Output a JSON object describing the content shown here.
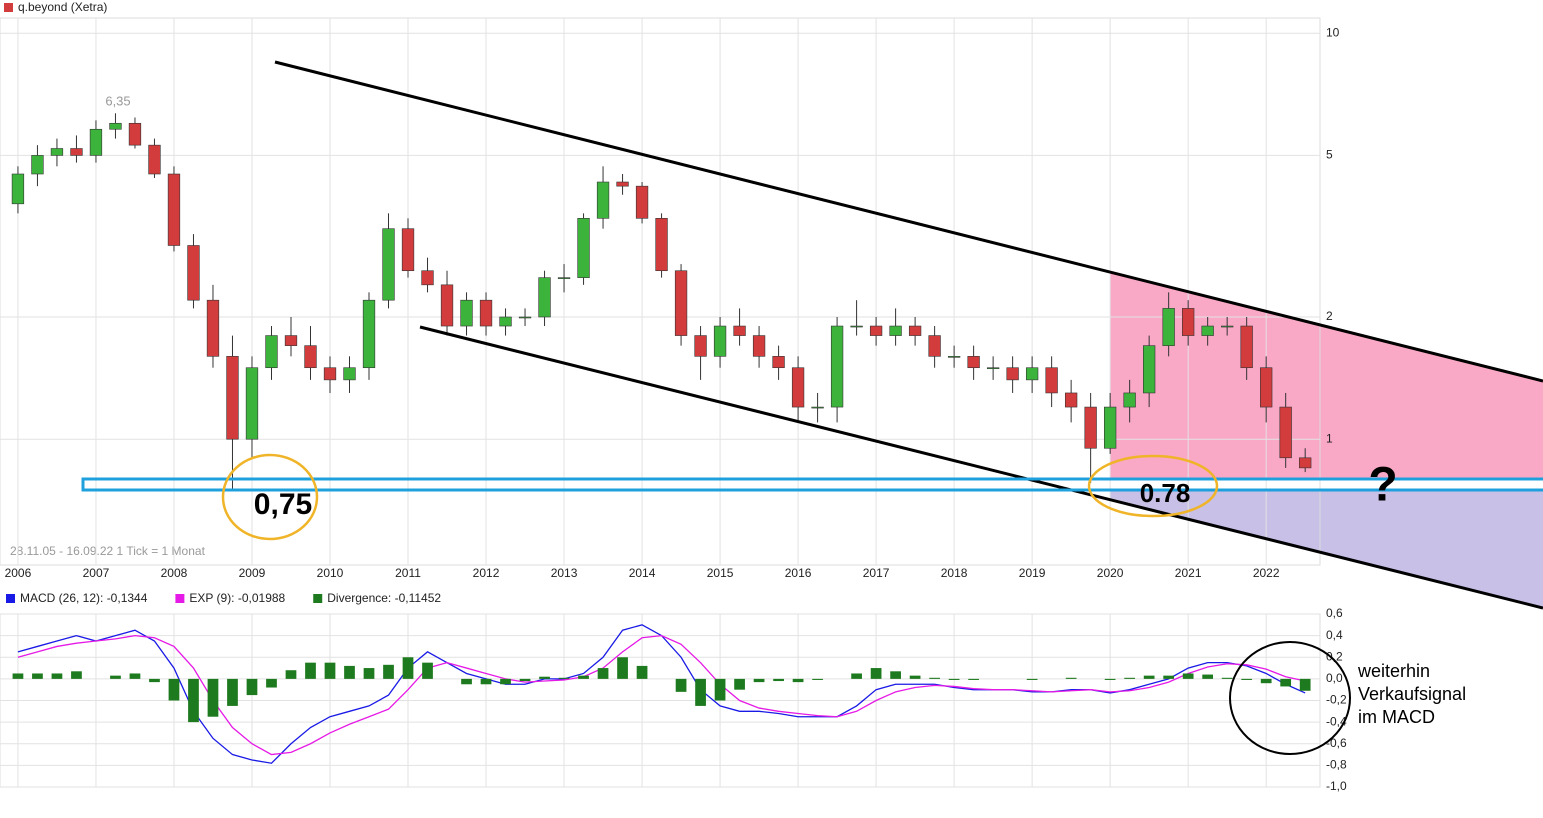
{
  "chart_data": [
    {
      "type": "candlestick",
      "title": "q.beyond (Xetra)",
      "subtitle": "28.11.05 - 16.09.22   1 Tick = 1 Monat",
      "x": [
        2006,
        2006.25,
        2006.5,
        2006.75,
        2007,
        2007.25,
        2007.5,
        2007.75,
        2008,
        2008.25,
        2008.5,
        2008.75,
        2009,
        2009.25,
        2009.5,
        2009.75,
        2010,
        2010.25,
        2010.5,
        2010.75,
        2011,
        2011.25,
        2011.5,
        2011.75,
        2012,
        2012.25,
        2012.5,
        2012.75,
        2013,
        2013.25,
        2013.5,
        2013.75,
        2014,
        2014.25,
        2014.5,
        2014.75,
        2015,
        2015.25,
        2015.5,
        2015.75,
        2016,
        2016.25,
        2016.5,
        2016.75,
        2017,
        2017.25,
        2017.5,
        2017.75,
        2018,
        2018.25,
        2018.5,
        2018.75,
        2019,
        2019.25,
        2019.5,
        2019.75,
        2020,
        2020.25,
        2020.5,
        2020.75,
        2021,
        2021.25,
        2021.5,
        2021.75,
        2022,
        2022.25,
        2022.5
      ],
      "open": [
        3.8,
        4.5,
        5.0,
        5.2,
        5.0,
        5.8,
        6.0,
        5.3,
        4.5,
        3.0,
        2.2,
        1.6,
        1.0,
        1.5,
        1.8,
        1.7,
        1.5,
        1.4,
        1.5,
        2.2,
        3.3,
        2.6,
        2.4,
        1.9,
        2.2,
        1.9,
        2.0,
        2.0,
        2.5,
        2.5,
        3.5,
        4.3,
        4.2,
        3.5,
        2.6,
        1.8,
        1.6,
        1.9,
        1.8,
        1.6,
        1.5,
        1.2,
        1.2,
        1.9,
        1.9,
        1.8,
        1.9,
        1.8,
        1.6,
        1.6,
        1.5,
        1.5,
        1.4,
        1.5,
        1.3,
        1.2,
        0.95,
        1.2,
        1.3,
        1.7,
        2.1,
        1.8,
        1.9,
        1.9,
        1.5,
        1.2,
        0.9
      ],
      "high": [
        4.7,
        5.3,
        5.5,
        5.6,
        6.1,
        6.35,
        6.2,
        5.5,
        4.7,
        3.2,
        2.4,
        1.8,
        1.6,
        1.9,
        2.0,
        1.9,
        1.6,
        1.6,
        2.3,
        3.6,
        3.5,
        2.8,
        2.6,
        2.3,
        2.3,
        2.1,
        2.1,
        2.6,
        2.7,
        3.6,
        4.7,
        4.5,
        4.3,
        3.6,
        2.7,
        1.9,
        2.0,
        2.1,
        1.9,
        1.7,
        1.6,
        1.3,
        2.0,
        2.2,
        2.0,
        2.1,
        2.0,
        1.9,
        1.7,
        1.7,
        1.6,
        1.6,
        1.6,
        1.6,
        1.4,
        1.3,
        1.3,
        1.4,
        1.8,
        2.3,
        2.2,
        2.0,
        2.0,
        2.0,
        1.6,
        1.3,
        0.95
      ],
      "low": [
        3.6,
        4.2,
        4.7,
        4.8,
        4.8,
        5.5,
        5.2,
        4.4,
        2.9,
        2.1,
        1.5,
        0.75,
        0.9,
        1.4,
        1.6,
        1.4,
        1.3,
        1.3,
        1.4,
        2.1,
        2.5,
        2.3,
        1.8,
        1.8,
        1.8,
        1.8,
        1.9,
        1.9,
        2.3,
        2.4,
        3.3,
        4.0,
        3.4,
        2.5,
        1.7,
        1.4,
        1.5,
        1.7,
        1.5,
        1.4,
        1.1,
        1.1,
        1.1,
        1.8,
        1.7,
        1.7,
        1.7,
        1.5,
        1.5,
        1.4,
        1.4,
        1.3,
        1.3,
        1.2,
        1.1,
        0.78,
        0.92,
        1.1,
        1.2,
        1.6,
        1.7,
        1.7,
        1.8,
        1.4,
        1.1,
        0.85,
        0.83
      ],
      "close": [
        4.5,
        5.0,
        5.2,
        5.0,
        5.8,
        6.0,
        5.3,
        4.5,
        3.0,
        2.2,
        1.6,
        1.0,
        1.5,
        1.8,
        1.7,
        1.5,
        1.4,
        1.5,
        2.2,
        3.3,
        2.6,
        2.4,
        1.9,
        2.2,
        1.9,
        2.0,
        2.0,
        2.5,
        2.5,
        3.5,
        4.3,
        4.2,
        3.5,
        2.6,
        1.8,
        1.6,
        1.9,
        1.8,
        1.6,
        1.5,
        1.2,
        1.2,
        1.9,
        1.9,
        1.8,
        1.9,
        1.8,
        1.6,
        1.6,
        1.5,
        1.5,
        1.4,
        1.5,
        1.3,
        1.2,
        0.95,
        1.2,
        1.3,
        1.7,
        2.1,
        1.8,
        1.9,
        1.9,
        1.5,
        1.2,
        0.9,
        0.85
      ],
      "up_color": "#3cb43c",
      "down_color": "#d23c3c",
      "log_scale": true,
      "xlim": [
        2005.77,
        2022.69
      ],
      "ylim": [
        0.49,
        10.9
      ],
      "xticks": [
        2006,
        2007,
        2008,
        2009,
        2010,
        2011,
        2012,
        2013,
        2014,
        2015,
        2016,
        2017,
        2018,
        2019,
        2020,
        2021,
        2022
      ],
      "yticks": [
        10,
        5,
        2,
        1
      ],
      "grid": true,
      "annotations": [
        "6,35",
        "0,75",
        "0.78",
        "?"
      ]
    },
    {
      "type": "combo",
      "x": [
        2006,
        2006.25,
        2006.5,
        2006.75,
        2007,
        2007.25,
        2007.5,
        2007.75,
        2008,
        2008.25,
        2008.5,
        2008.75,
        2009,
        2009.25,
        2009.5,
        2009.75,
        2010,
        2010.25,
        2010.5,
        2010.75,
        2011,
        2011.25,
        2011.5,
        2011.75,
        2012,
        2012.25,
        2012.5,
        2012.75,
        2013,
        2013.25,
        2013.5,
        2013.75,
        2014,
        2014.25,
        2014.5,
        2014.75,
        2015,
        2015.25,
        2015.5,
        2015.75,
        2016,
        2016.25,
        2016.5,
        2016.75,
        2017,
        2017.25,
        2017.5,
        2017.75,
        2018,
        2018.25,
        2018.5,
        2018.75,
        2019,
        2019.25,
        2019.5,
        2019.75,
        2020,
        2020.25,
        2020.5,
        2020.75,
        2021,
        2021.25,
        2021.5,
        2021.75,
        2022,
        2022.25,
        2022.5
      ],
      "series": [
        {
          "name": "MACD (26, 12): -0,1344",
          "color": "#1a1ae6",
          "style": "line",
          "values": [
            0.25,
            0.3,
            0.35,
            0.4,
            0.35,
            0.4,
            0.45,
            0.35,
            0.1,
            -0.3,
            -0.55,
            -0.7,
            -0.75,
            -0.78,
            -0.6,
            -0.45,
            -0.35,
            -0.3,
            -0.25,
            -0.15,
            0.1,
            0.25,
            0.15,
            0.05,
            0.0,
            -0.05,
            -0.05,
            0.0,
            0.0,
            0.05,
            0.2,
            0.45,
            0.5,
            0.4,
            0.2,
            -0.1,
            -0.25,
            -0.3,
            -0.3,
            -0.32,
            -0.35,
            -0.35,
            -0.35,
            -0.25,
            -0.1,
            -0.05,
            -0.05,
            -0.05,
            -0.08,
            -0.1,
            -0.1,
            -0.1,
            -0.12,
            -0.12,
            -0.1,
            -0.1,
            -0.13,
            -0.1,
            -0.05,
            0.0,
            0.1,
            0.15,
            0.15,
            0.12,
            0.05,
            -0.05,
            -0.13
          ]
        },
        {
          "name": "EXP (9): -0,01988",
          "color": "#e61ae6",
          "style": "line",
          "values": [
            0.2,
            0.25,
            0.3,
            0.33,
            0.35,
            0.37,
            0.4,
            0.38,
            0.3,
            0.1,
            -0.2,
            -0.45,
            -0.6,
            -0.7,
            -0.68,
            -0.6,
            -0.5,
            -0.42,
            -0.35,
            -0.28,
            -0.1,
            0.1,
            0.15,
            0.1,
            0.05,
            0.0,
            -0.03,
            -0.02,
            -0.01,
            0.02,
            0.1,
            0.25,
            0.38,
            0.4,
            0.32,
            0.15,
            -0.05,
            -0.2,
            -0.27,
            -0.3,
            -0.32,
            -0.34,
            -0.35,
            -0.3,
            -0.2,
            -0.12,
            -0.08,
            -0.06,
            -0.07,
            -0.09,
            -0.1,
            -0.1,
            -0.11,
            -0.12,
            -0.11,
            -0.1,
            -0.12,
            -0.11,
            -0.08,
            -0.03,
            0.05,
            0.11,
            0.14,
            0.13,
            0.09,
            0.02,
            -0.02
          ]
        },
        {
          "name": "Divergence: -0,11452",
          "color": "#1e7a1e",
          "style": "bar",
          "values": [
            0.05,
            0.05,
            0.05,
            0.07,
            0.0,
            0.03,
            0.05,
            -0.03,
            -0.2,
            -0.4,
            -0.35,
            -0.25,
            -0.15,
            -0.08,
            0.08,
            0.15,
            0.15,
            0.12,
            0.1,
            0.13,
            0.2,
            0.15,
            0.0,
            -0.05,
            -0.05,
            -0.05,
            -0.02,
            0.02,
            0.01,
            0.03,
            0.1,
            0.2,
            0.12,
            0.0,
            -0.12,
            -0.25,
            -0.2,
            -0.1,
            -0.03,
            -0.02,
            -0.03,
            -0.01,
            0.0,
            0.05,
            0.1,
            0.07,
            0.03,
            0.01,
            -0.01,
            -0.01,
            0.0,
            0.0,
            -0.01,
            0.0,
            0.01,
            0.0,
            -0.01,
            0.01,
            0.03,
            0.03,
            0.05,
            0.04,
            0.01,
            -0.01,
            -0.04,
            -0.07,
            -0.11
          ]
        }
      ],
      "xlim": [
        2005.77,
        2022.69
      ],
      "ylim": [
        -1.0,
        0.6
      ],
      "xticks": [
        2006,
        2007,
        2008,
        2009,
        2010,
        2011,
        2012,
        2013,
        2014,
        2015,
        2016,
        2017,
        2018,
        2019,
        2020,
        2021,
        2022
      ],
      "yticks": [
        {
          "value": 0.6,
          "label": "0,6"
        },
        {
          "value": 0.4,
          "label": "0,4"
        },
        {
          "value": 0.2,
          "label": "0,2"
        },
        {
          "value": 0.0,
          "label": "0,0"
        },
        {
          "value": -0.2,
          "label": "-0,2"
        },
        {
          "value": -0.4,
          "label": "-0,4"
        },
        {
          "value": -0.6,
          "label": "-0,6"
        },
        {
          "value": -0.8,
          "label": "-0,8"
        },
        {
          "value": -1.0,
          "label": "-1,0"
        }
      ],
      "grid": true,
      "annotations": [
        "weiterhin",
        "Verkaufsignal",
        "im MACD"
      ]
    }
  ]
}
